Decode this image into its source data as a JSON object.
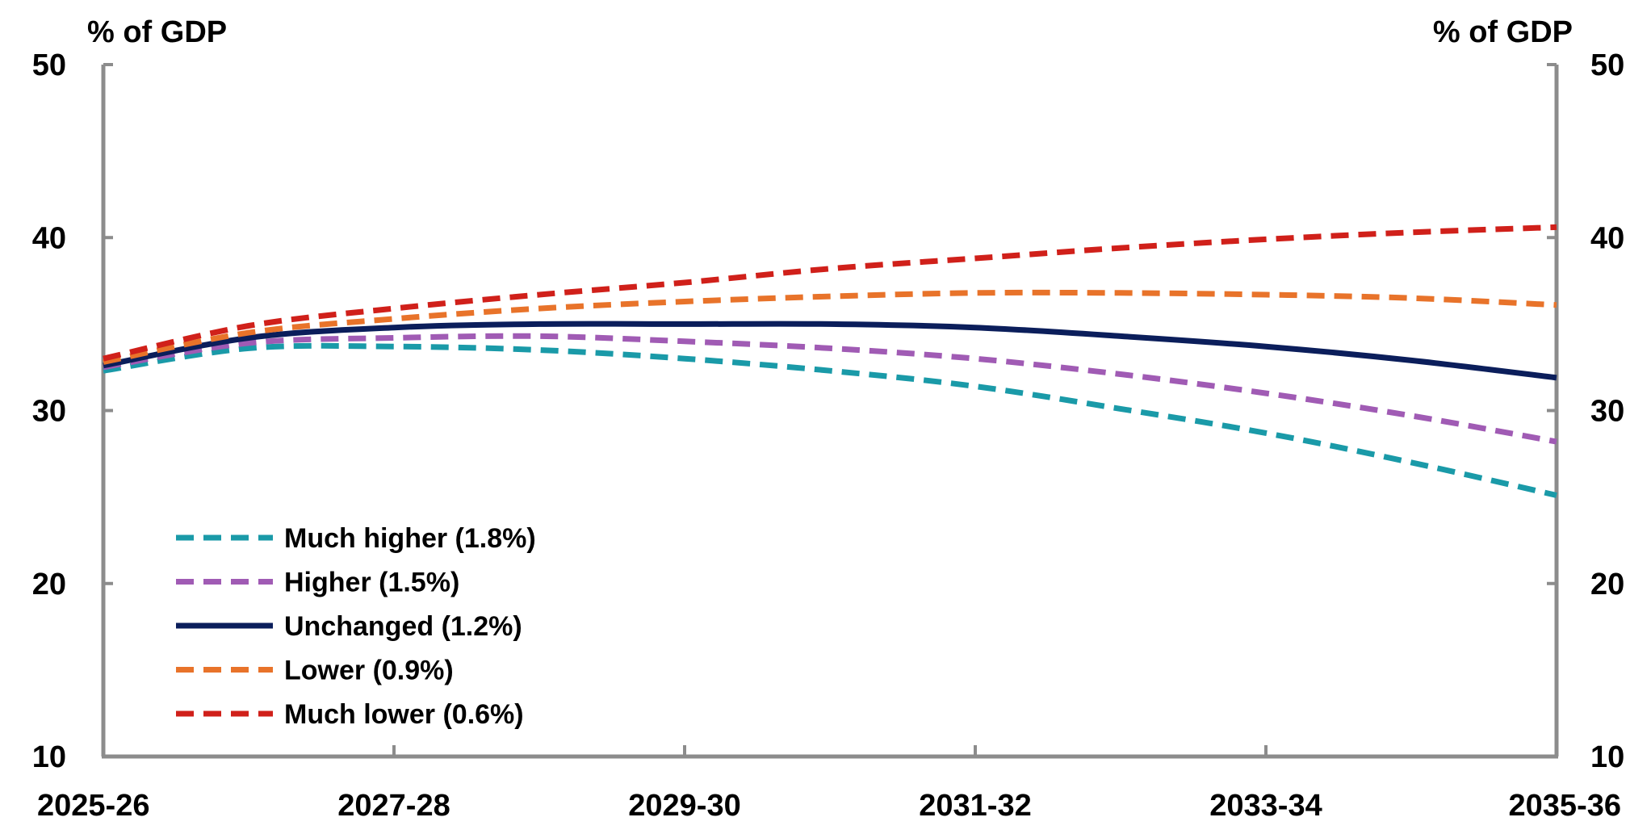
{
  "chart_data": {
    "type": "line",
    "title": "",
    "ylabel_left": "% of GDP",
    "ylabel_right": "% of GDP",
    "ylim": [
      10,
      50
    ],
    "yticks": [
      10,
      20,
      30,
      40,
      50
    ],
    "y_tick_labels": [
      "10",
      "20",
      "30",
      "40",
      "50"
    ],
    "x_tick_labels": [
      "2025-26",
      "2027-28",
      "2029-30",
      "2031-32",
      "2033-34",
      "2035-36"
    ],
    "x_tick_positions": [
      0,
      2,
      4,
      6,
      8,
      10
    ],
    "xlim": [
      0,
      10
    ],
    "grid": false,
    "legend_position": "bottom-left",
    "x": [
      "2025-26",
      "2026-27",
      "2027-28",
      "2028-29",
      "2029-30",
      "2030-31",
      "2031-32",
      "2032-33",
      "2033-34",
      "2034-35",
      "2035-36"
    ],
    "series": [
      {
        "name": "Much higher (1.8%)",
        "color": "#1A9AA8",
        "dash": "dashed",
        "values": [
          32.3,
          33.6,
          33.7,
          33.5,
          33.0,
          32.3,
          31.4,
          30.1,
          28.7,
          27.0,
          25.1
        ]
      },
      {
        "name": "Higher (1.5%)",
        "color": "#A05BB4",
        "dash": "dashed",
        "values": [
          32.5,
          33.9,
          34.2,
          34.3,
          34.0,
          33.6,
          33.0,
          32.1,
          31.0,
          29.7,
          28.2
        ]
      },
      {
        "name": "Unchanged (1.2%)",
        "color": "#0B1E5B",
        "dash": "solid",
        "values": [
          32.6,
          34.2,
          34.8,
          35.0,
          35.0,
          35.0,
          34.8,
          34.3,
          33.7,
          32.9,
          31.9
        ]
      },
      {
        "name": "Lower (0.9%)",
        "color": "#E8732A",
        "dash": "dashed",
        "values": [
          32.8,
          34.5,
          35.3,
          35.9,
          36.3,
          36.6,
          36.8,
          36.8,
          36.7,
          36.5,
          36.1
        ]
      },
      {
        "name": "Much lower (0.6%)",
        "color": "#D0201A",
        "dash": "dashed",
        "values": [
          33.0,
          34.9,
          35.9,
          36.7,
          37.4,
          38.2,
          38.8,
          39.4,
          39.9,
          40.3,
          40.6
        ]
      }
    ]
  }
}
